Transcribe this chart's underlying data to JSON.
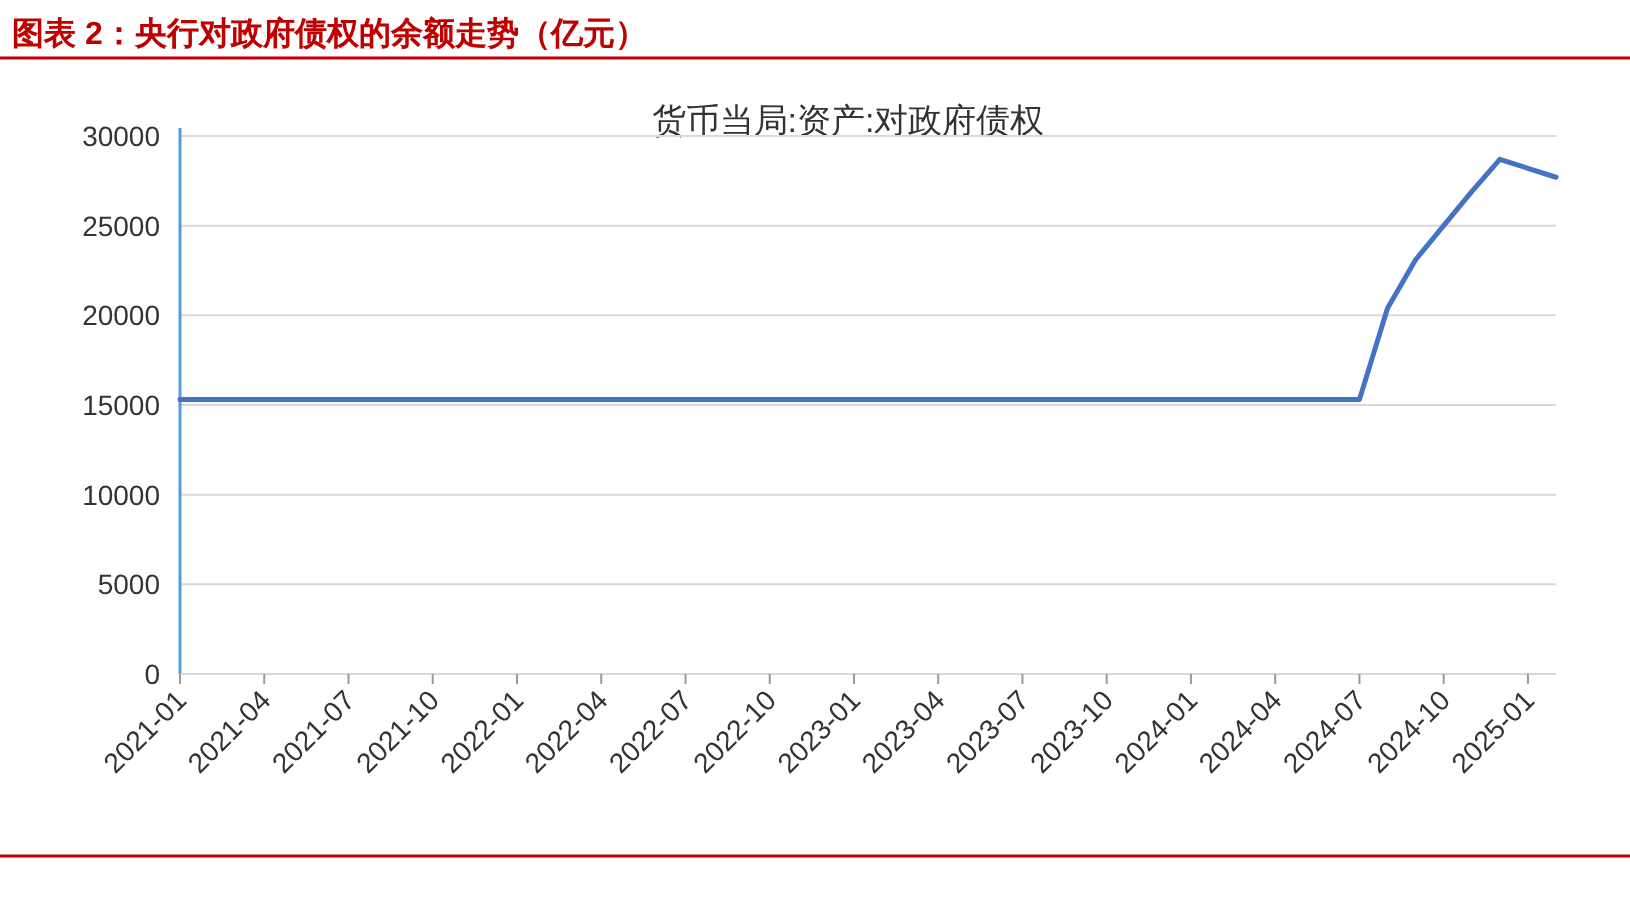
{
  "chart_data": {
    "type": "line",
    "title": "图表 2：央行对政府债权的余额走势（亿元）",
    "subtitle": "货币当局:资产:对政府债权",
    "x": [
      "2021-01",
      "2021-02",
      "2021-03",
      "2021-04",
      "2021-05",
      "2021-06",
      "2021-07",
      "2021-08",
      "2021-09",
      "2021-10",
      "2021-11",
      "2021-12",
      "2022-01",
      "2022-02",
      "2022-03",
      "2022-04",
      "2022-05",
      "2022-06",
      "2022-07",
      "2022-08",
      "2022-09",
      "2022-10",
      "2022-11",
      "2022-12",
      "2023-01",
      "2023-02",
      "2023-03",
      "2023-04",
      "2023-05",
      "2023-06",
      "2023-07",
      "2023-08",
      "2023-09",
      "2023-10",
      "2023-11",
      "2023-12",
      "2024-01",
      "2024-02",
      "2024-03",
      "2024-04",
      "2024-05",
      "2024-06",
      "2024-07",
      "2024-08",
      "2024-09",
      "2024-10",
      "2024-11",
      "2024-12",
      "2025-01",
      "2025-02"
    ],
    "series": [
      {
        "color": "#4472c4",
        "values": [
          15300,
          15300,
          15300,
          15300,
          15300,
          15300,
          15300,
          15300,
          15300,
          15300,
          15300,
          15300,
          15300,
          15300,
          15300,
          15300,
          15300,
          15300,
          15300,
          15300,
          15300,
          15300,
          15300,
          15300,
          15300,
          15300,
          15300,
          15300,
          15300,
          15300,
          15300,
          15300,
          15300,
          15300,
          15300,
          15300,
          15300,
          15300,
          15300,
          15300,
          15300,
          15300,
          15300,
          20400,
          23100,
          25000,
          26900,
          28700,
          28200,
          27700
        ]
      }
    ],
    "xlim": [
      "2021-01",
      "2025-02"
    ],
    "xticks": [
      "2021-01",
      "2021-04",
      "2021-07",
      "2021-10",
      "2022-01",
      "2022-04",
      "2022-07",
      "2022-10",
      "2023-01",
      "2023-04",
      "2023-07",
      "2023-10",
      "2024-01",
      "2024-04",
      "2024-07",
      "2024-10",
      "2025-01"
    ],
    "ylim": [
      0,
      30000
    ],
    "yticks": [
      0,
      5000,
      10000,
      15000,
      20000,
      25000,
      30000
    ],
    "grid": "y",
    "marker": "none",
    "line_style": "solid"
  }
}
